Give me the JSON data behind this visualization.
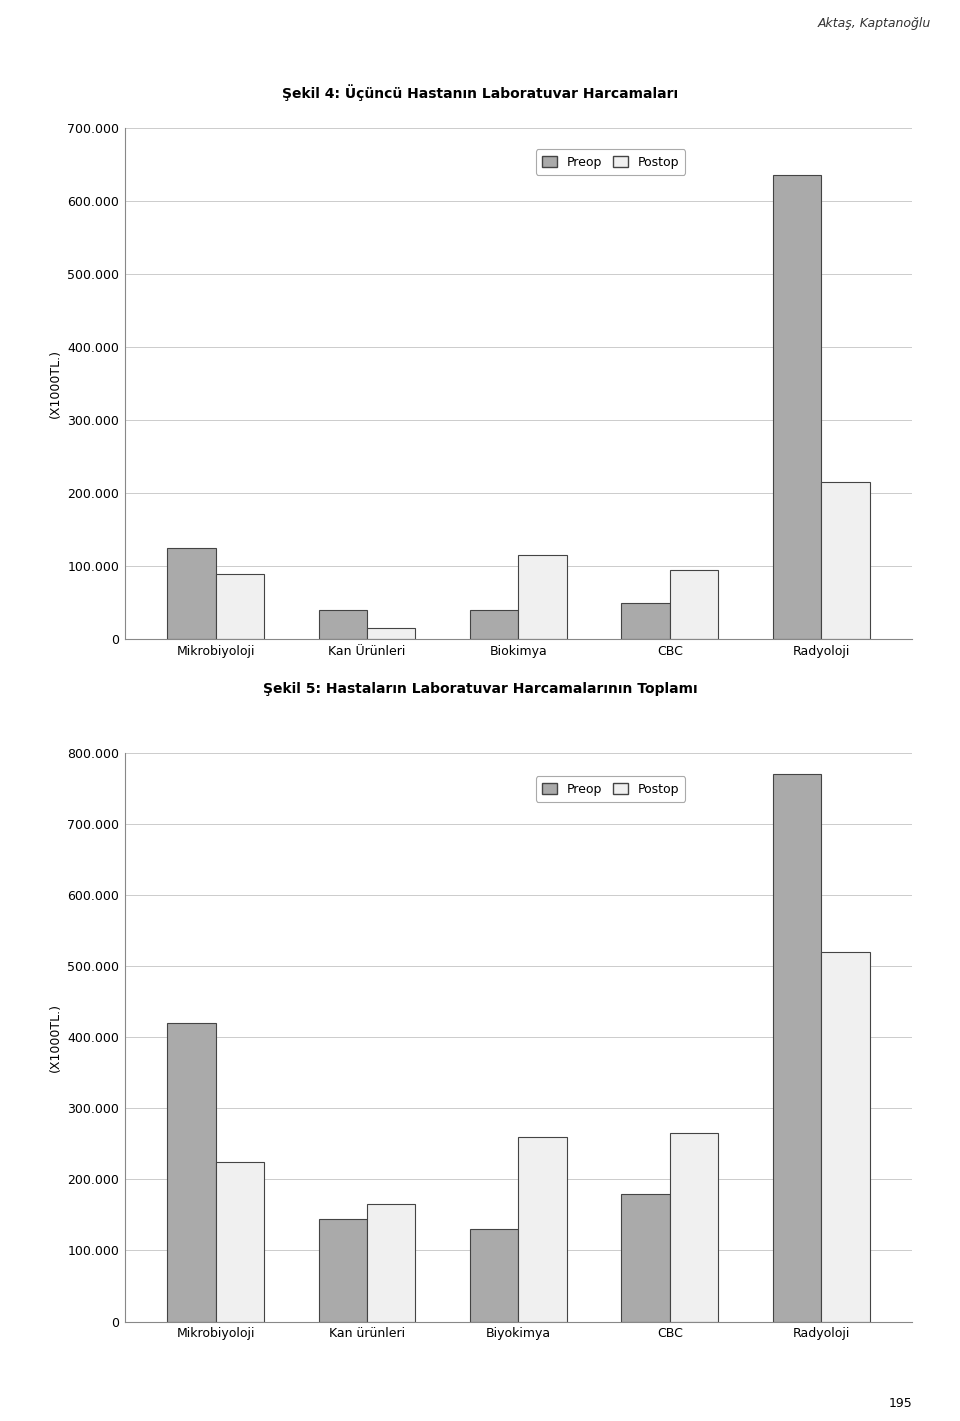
{
  "chart1": {
    "title": "Şekil 4: Üçüncü Hastanın Laboratuvar Harcamaları",
    "categories": [
      "Mikrobiyoloji",
      "Kan Ürünleri",
      "Biokimya",
      "CBC",
      "Radyoloji"
    ],
    "preop": [
      125000,
      40000,
      40000,
      50000,
      635000
    ],
    "postop": [
      90000,
      15000,
      115000,
      95000,
      215000
    ],
    "ylabel": "(X1000TL.)",
    "ylim": [
      0,
      700000
    ],
    "yticks": [
      0,
      100000,
      200000,
      300000,
      400000,
      500000,
      600000,
      700000
    ],
    "ytick_labels": [
      "0",
      "100.000",
      "200.000",
      "300.000",
      "400.000",
      "500.000",
      "600.000",
      "700.000"
    ]
  },
  "chart2": {
    "title": "Şekil 5: Hastaların Laboratuvar Harcamalarının Toplamı",
    "categories": [
      "Mikrobiyoloji",
      "Kan ürünleri",
      "Biyokimya",
      "CBC",
      "Radyoloji"
    ],
    "preop": [
      420000,
      145000,
      130000,
      180000,
      770000
    ],
    "postop": [
      225000,
      165000,
      260000,
      265000,
      520000
    ],
    "ylabel": "(X1000TL.)",
    "ylim": [
      0,
      800000
    ],
    "yticks": [
      0,
      100000,
      200000,
      300000,
      400000,
      500000,
      600000,
      700000,
      800000
    ],
    "ytick_labels": [
      "0",
      "100.000",
      "200.000",
      "300.000",
      "400.000",
      "500.000",
      "600.000",
      "700.000",
      "800.000"
    ]
  },
  "preop_color": "#aaaaaa",
  "postop_color": "#f0f0f0",
  "preop_edge": "#444444",
  "postop_edge": "#444444",
  "bar_width": 0.32,
  "legend_labels": [
    "Preop",
    "Postop"
  ],
  "header_text": "Aktaş, Kaptanoğlu",
  "footer_text": "195",
  "title_fontsize": 10,
  "axis_fontsize": 9,
  "tick_fontsize": 9,
  "background_color": "#ffffff"
}
